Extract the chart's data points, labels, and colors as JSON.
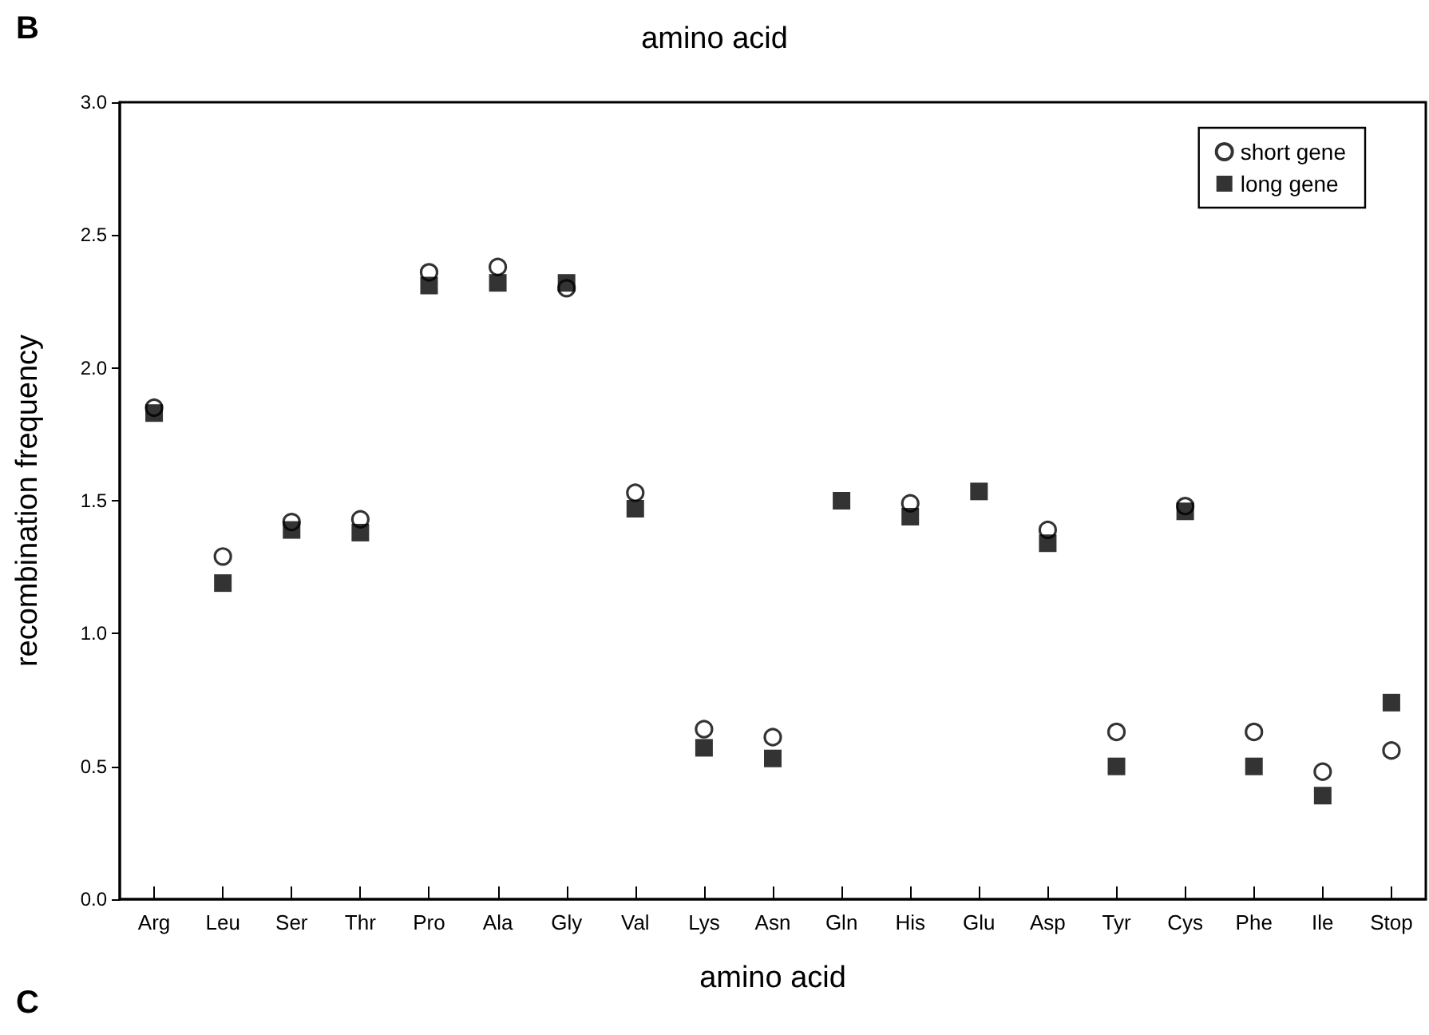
{
  "chart_data": {
    "type": "scatter",
    "title": "amino acid",
    "xlabel": "amino acid",
    "ylabel": "recombination frequency",
    "annotations": [
      "B",
      "C"
    ],
    "categories": [
      "Arg",
      "Leu",
      "Ser",
      "Thr",
      "Pro",
      "Ala",
      "Gly",
      "Val",
      "Lys",
      "Asn",
      "Gln",
      "His",
      "Glu",
      "Asp",
      "Tyr",
      "Cys",
      "Phe",
      "Ile",
      "Stop"
    ],
    "series": [
      {
        "name": "short gene",
        "color": "#000000",
        "marker": "circle",
        "values": [
          1.85,
          1.29,
          1.42,
          1.43,
          2.36,
          2.38,
          2.3,
          1.53,
          0.64,
          0.61,
          null,
          1.49,
          null,
          1.39,
          0.63,
          1.48,
          0.63,
          0.48,
          0.56
        ]
      },
      {
        "name": "long gene",
        "color": "#000000",
        "marker": "square",
        "values": [
          1.83,
          1.19,
          1.39,
          1.38,
          2.31,
          2.32,
          2.32,
          1.47,
          0.57,
          0.53,
          1.5,
          1.44,
          1.535,
          1.34,
          0.5,
          1.46,
          0.5,
          0.39,
          0.74
        ]
      }
    ],
    "ylim": [
      0,
      3.0
    ],
    "yticks": [
      {
        "value": 0,
        "label": "0.0"
      },
      {
        "value": 0.5,
        "label": "0.5"
      },
      {
        "value": 1,
        "label": "1.0"
      },
      {
        "value": 1.5,
        "label": "1.5"
      },
      {
        "value": 2,
        "label": "2.0"
      },
      {
        "value": 2.5,
        "label": "2.5"
      },
      {
        "value": 3,
        "label": "3.0"
      }
    ],
    "grid": false,
    "legend": "top right"
  }
}
